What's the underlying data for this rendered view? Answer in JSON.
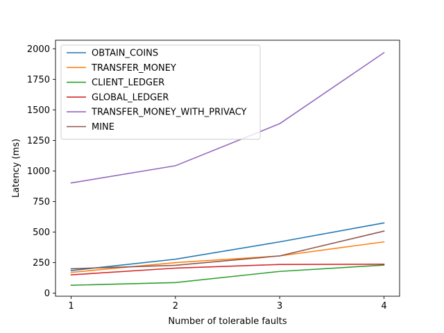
{
  "chart_data": {
    "type": "line",
    "title": "",
    "xlabel": "Number of tolerable faults",
    "ylabel": "Latency (ms)",
    "x": [
      1,
      2,
      3,
      4
    ],
    "xlim": [
      0.85,
      4.15
    ],
    "ylim": [
      -25,
      2070
    ],
    "xticks": [
      1,
      2,
      3,
      4
    ],
    "yticks": [
      0,
      250,
      500,
      750,
      1000,
      1250,
      1500,
      1750,
      2000
    ],
    "grid": false,
    "legend_position": "top-left",
    "series": [
      {
        "name": "OBTAIN_COINS",
        "color": "#1f77b4",
        "values": [
          185,
          278,
          420,
          575
        ]
      },
      {
        "name": "TRANSFER_MONEY",
        "color": "#ff7f0e",
        "values": [
          170,
          250,
          305,
          420
        ]
      },
      {
        "name": "CLIENT_LEDGER",
        "color": "#2ca02c",
        "values": [
          65,
          87,
          178,
          230
        ]
      },
      {
        "name": "GLOBAL_LEDGER",
        "color": "#d62728",
        "values": [
          150,
          205,
          235,
          237
        ]
      },
      {
        "name": "TRANSFER_MONEY_WITH_PRIVACY",
        "color": "#9467bd",
        "values": [
          902,
          1043,
          1387,
          1968
        ]
      },
      {
        "name": "MINE",
        "color": "#8c564b",
        "values": [
          200,
          228,
          305,
          508
        ]
      }
    ]
  }
}
